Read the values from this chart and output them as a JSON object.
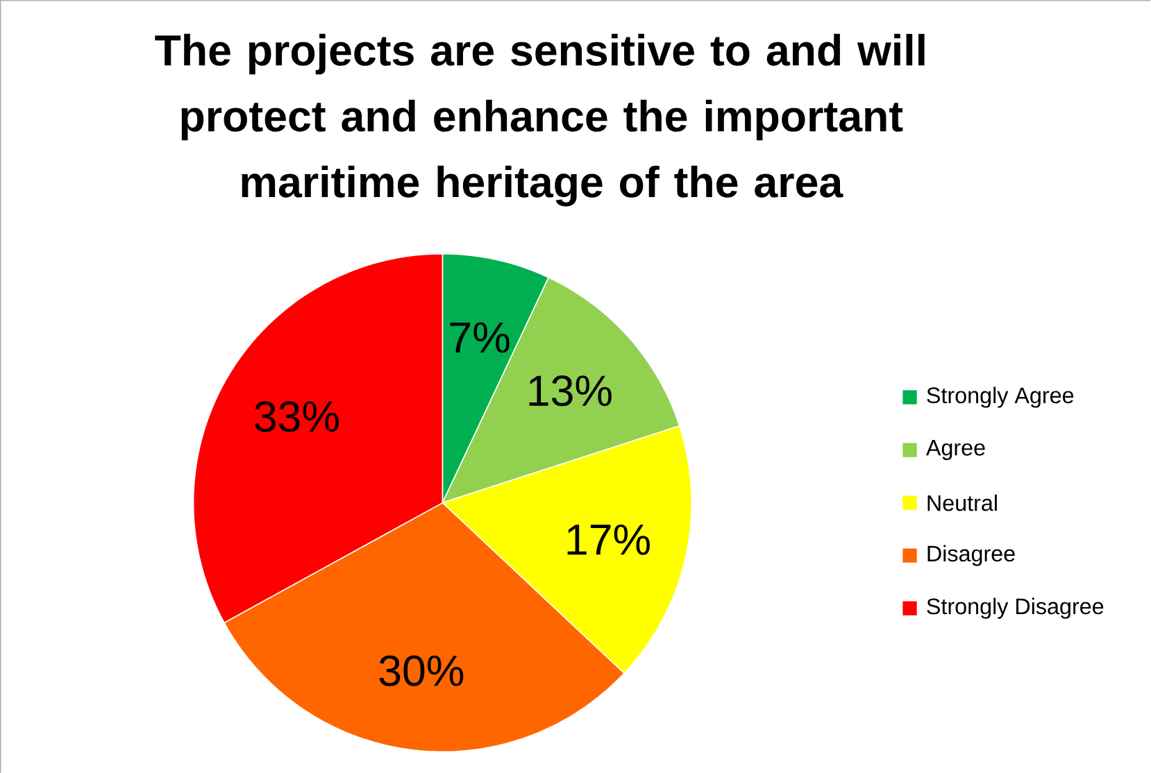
{
  "chart_data": {
    "type": "pie",
    "title": "The projects are sensitive to and will protect and enhance the important maritime heritage of the area",
    "categories": [
      "Strongly Agree",
      "Agree",
      "Neutral",
      "Disagree",
      "Strongly Disagree"
    ],
    "values": [
      7,
      13,
      17,
      30,
      33
    ],
    "value_labels": [
      "7%",
      "13%",
      "17%",
      "30%",
      "33%"
    ],
    "colors": [
      "#00b050",
      "#92d050",
      "#ffff00",
      "#ff6600",
      "#ff0000"
    ],
    "legend": "right"
  }
}
